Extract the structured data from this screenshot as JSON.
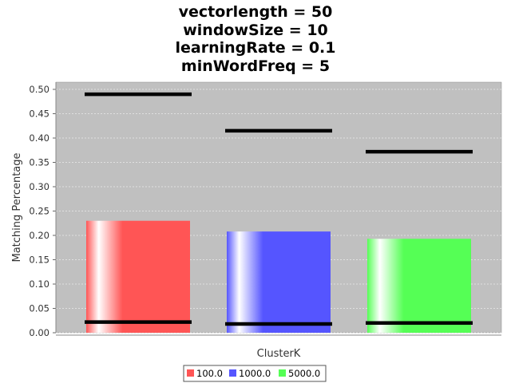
{
  "chart_data": {
    "type": "bar",
    "title_lines": [
      "vectorlength = 50",
      "windowSize = 10",
      "learningRate = 0.1",
      "minWordFreq = 5"
    ],
    "xlabel": "ClusterK",
    "ylabel": "Matching Percentage",
    "ylim": [
      0,
      0.5
    ],
    "yticks": [
      "0.00",
      "0.05",
      "0.10",
      "0.15",
      "0.20",
      "0.25",
      "0.30",
      "0.35",
      "0.40",
      "0.45",
      "0.50"
    ],
    "grid": true,
    "legend_position": "bottom",
    "series": [
      {
        "name": "100.0",
        "color": "#ff5555",
        "value": 0.23,
        "low": 0.022,
        "high": 0.49
      },
      {
        "name": "1000.0",
        "color": "#5555ff",
        "value": 0.208,
        "low": 0.018,
        "high": 0.415
      },
      {
        "name": "5000.0",
        "color": "#55ff55",
        "value": 0.193,
        "low": 0.02,
        "high": 0.372
      }
    ]
  }
}
